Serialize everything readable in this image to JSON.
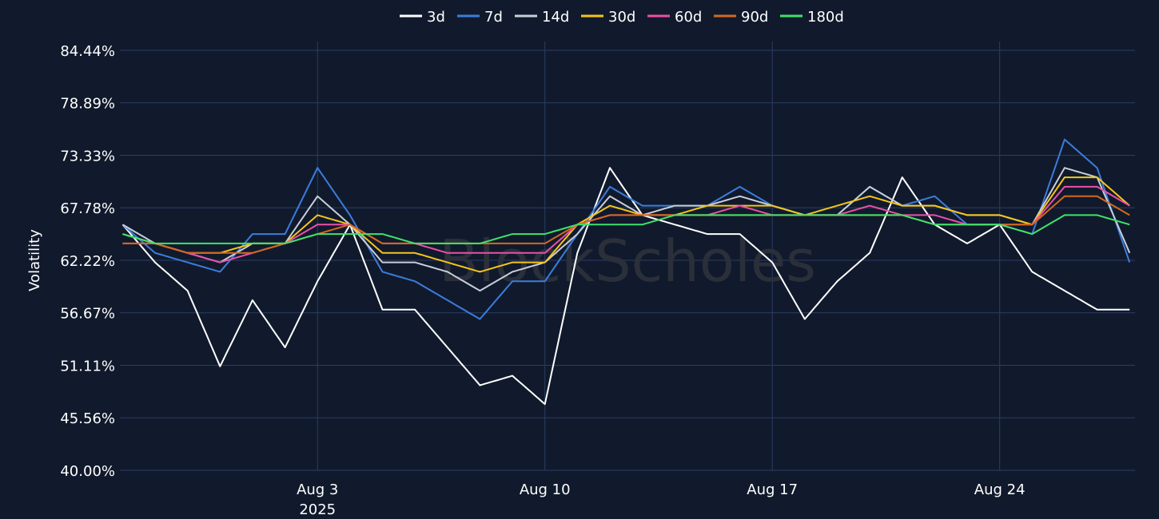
{
  "chart_data": {
    "type": "line",
    "title": "",
    "xlabel": "",
    "ylabel": "Volatility",
    "watermark": "BlockScholes",
    "legend_position": "top-center",
    "grid": true,
    "xlim": [
      "2025-07-27T22:00",
      "2025-08-28T04:00"
    ],
    "ylim": [
      40.0,
      84.44
    ],
    "y_ticks": [
      "40.00%",
      "45.56%",
      "51.11%",
      "56.67%",
      "62.22%",
      "67.78%",
      "73.33%",
      "78.89%",
      "84.44%"
    ],
    "x_ticks": [
      {
        "date": "2025-08-03",
        "label": "Aug 3",
        "sublabel": "2025"
      },
      {
        "date": "2025-08-10",
        "label": "Aug 10",
        "sublabel": ""
      },
      {
        "date": "2025-08-17",
        "label": "Aug 17",
        "sublabel": ""
      },
      {
        "date": "2025-08-24",
        "label": "Aug 24",
        "sublabel": ""
      }
    ],
    "x": [
      "2025-07-28",
      "2025-07-29",
      "2025-07-30",
      "2025-07-31",
      "2025-08-01",
      "2025-08-02",
      "2025-08-03",
      "2025-08-04",
      "2025-08-05",
      "2025-08-06",
      "2025-08-07",
      "2025-08-08",
      "2025-08-09",
      "2025-08-10",
      "2025-08-11",
      "2025-08-12",
      "2025-08-13",
      "2025-08-14",
      "2025-08-15",
      "2025-08-16",
      "2025-08-17",
      "2025-08-18",
      "2025-08-19",
      "2025-08-20",
      "2025-08-21",
      "2025-08-22",
      "2025-08-23",
      "2025-08-24",
      "2025-08-25",
      "2025-08-26",
      "2025-08-27",
      "2025-08-28"
    ],
    "series": [
      {
        "name": "3d",
        "color": "#ffffff",
        "values": [
          66,
          62,
          59,
          51,
          58,
          53,
          60,
          66,
          57,
          57,
          53,
          49,
          50,
          47,
          63,
          72,
          67,
          66,
          65,
          65,
          62,
          56,
          60,
          63,
          71,
          66,
          64,
          66,
          61,
          59,
          57,
          57
        ]
      },
      {
        "name": "7d",
        "color": "#3b7ddd",
        "values": [
          66,
          63,
          62,
          61,
          65,
          65,
          72,
          67,
          61,
          60,
          58,
          56,
          60,
          60,
          65,
          70,
          68,
          68,
          68,
          70,
          68,
          67,
          67,
          70,
          68,
          69,
          66,
          66,
          65,
          75,
          72,
          62
        ]
      },
      {
        "name": "14d",
        "color": "#c9ced8",
        "values": [
          66,
          64,
          63,
          62,
          64,
          64,
          69,
          66,
          62,
          62,
          61,
          59,
          61,
          62,
          65,
          69,
          67,
          68,
          68,
          69,
          68,
          67,
          67,
          70,
          68,
          68,
          67,
          67,
          66,
          72,
          71,
          63
        ]
      },
      {
        "name": "30d",
        "color": "#f5c518",
        "values": [
          65,
          64,
          63,
          63,
          64,
          64,
          67,
          66,
          63,
          63,
          62,
          61,
          62,
          62,
          66,
          68,
          67,
          67,
          68,
          68,
          68,
          67,
          68,
          69,
          68,
          68,
          67,
          67,
          66,
          71,
          71,
          68
        ]
      },
      {
        "name": "60d",
        "color": "#ec4fa8",
        "values": [
          64,
          64,
          63,
          62,
          63,
          64,
          66,
          66,
          64,
          64,
          63,
          63,
          63,
          63,
          66,
          67,
          67,
          67,
          67,
          68,
          67,
          67,
          67,
          68,
          67,
          67,
          66,
          66,
          66,
          70,
          70,
          68
        ]
      },
      {
        "name": "90d",
        "color": "#d2691e",
        "values": [
          64,
          64,
          63,
          63,
          63,
          64,
          65,
          66,
          64,
          64,
          64,
          64,
          64,
          64,
          66,
          67,
          67,
          67,
          67,
          67,
          67,
          67,
          67,
          67,
          67,
          66,
          66,
          66,
          66,
          69,
          69,
          67
        ]
      },
      {
        "name": "180d",
        "color": "#3ee36b",
        "values": [
          65,
          64,
          64,
          64,
          64,
          64,
          65,
          65,
          65,
          64,
          64,
          64,
          65,
          65,
          66,
          66,
          66,
          67,
          67,
          67,
          67,
          67,
          67,
          67,
          67,
          66,
          66,
          66,
          65,
          67,
          67,
          66
        ]
      }
    ]
  }
}
